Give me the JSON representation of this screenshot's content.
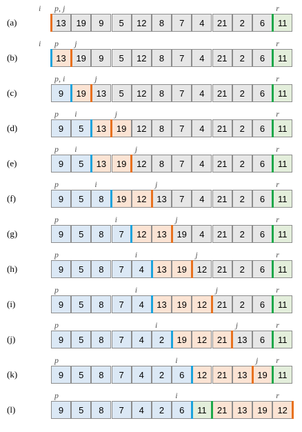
{
  "colors": {
    "blue_cell": "#dbe8f5",
    "peach_cell": "#fbe3d3",
    "grey_cell": "#e6e6e6",
    "green_cell": "#e3eedb",
    "i_marker": "#1aa3dd",
    "j_marker": "#e8711e",
    "r_marker": "#1ea84a"
  },
  "rows": [
    {
      "label": "(a)",
      "values": [
        13,
        19,
        9,
        5,
        12,
        8,
        7,
        4,
        21,
        2,
        6,
        11
      ],
      "colors": [
        "grey",
        "grey",
        "grey",
        "grey",
        "grey",
        "grey",
        "grey",
        "grey",
        "grey",
        "grey",
        "grey",
        "green"
      ],
      "markers": [
        {
          "pos": 0,
          "color": "orange"
        },
        {
          "pos": 11,
          "color": "green"
        }
      ],
      "indices": [
        {
          "text": "i",
          "pos": -1
        },
        {
          "text": "p, j",
          "pos": 0
        },
        {
          "text": "r",
          "pos": 11
        }
      ]
    },
    {
      "label": "(b)",
      "values": [
        13,
        19,
        9,
        5,
        12,
        8,
        7,
        4,
        21,
        2,
        6,
        11
      ],
      "colors": [
        "peach",
        "grey",
        "grey",
        "grey",
        "grey",
        "grey",
        "grey",
        "grey",
        "grey",
        "grey",
        "grey",
        "green"
      ],
      "markers": [
        {
          "pos": 0,
          "color": "blue"
        },
        {
          "pos": 1,
          "color": "orange"
        },
        {
          "pos": 11,
          "color": "green"
        }
      ],
      "indices": [
        {
          "text": "i",
          "pos": -1
        },
        {
          "text": "p",
          "pos": 0
        },
        {
          "text": "j",
          "pos": 1
        },
        {
          "text": "r",
          "pos": 11
        }
      ]
    },
    {
      "label": "(c)",
      "values": [
        9,
        19,
        13,
        5,
        12,
        8,
        7,
        4,
        21,
        2,
        6,
        11
      ],
      "colors": [
        "blue",
        "peach",
        "grey",
        "grey",
        "grey",
        "grey",
        "grey",
        "grey",
        "grey",
        "grey",
        "grey",
        "green"
      ],
      "markers": [
        {
          "pos": 1,
          "color": "blue"
        },
        {
          "pos": 2,
          "color": "orange"
        },
        {
          "pos": 11,
          "color": "green"
        }
      ],
      "indices": [
        {
          "text": "p, i",
          "pos": 0
        },
        {
          "text": "j",
          "pos": 2
        },
        {
          "text": "r",
          "pos": 11
        }
      ]
    },
    {
      "label": "(d)",
      "values": [
        9,
        5,
        13,
        19,
        12,
        8,
        7,
        4,
        21,
        2,
        6,
        11
      ],
      "colors": [
        "blue",
        "blue",
        "peach",
        "peach",
        "grey",
        "grey",
        "grey",
        "grey",
        "grey",
        "grey",
        "grey",
        "green"
      ],
      "markers": [
        {
          "pos": 2,
          "color": "blue"
        },
        {
          "pos": 3,
          "color": "orange"
        },
        {
          "pos": 11,
          "color": "green"
        }
      ],
      "indices": [
        {
          "text": "p",
          "pos": 0
        },
        {
          "text": "i",
          "pos": 1
        },
        {
          "text": "j",
          "pos": 3
        },
        {
          "text": "r",
          "pos": 11
        }
      ]
    },
    {
      "label": "(e)",
      "values": [
        9,
        5,
        13,
        19,
        12,
        8,
        7,
        4,
        21,
        2,
        6,
        11
      ],
      "colors": [
        "blue",
        "blue",
        "peach",
        "peach",
        "grey",
        "grey",
        "grey",
        "grey",
        "grey",
        "grey",
        "grey",
        "green"
      ],
      "markers": [
        {
          "pos": 2,
          "color": "blue"
        },
        {
          "pos": 4,
          "color": "orange"
        },
        {
          "pos": 11,
          "color": "green"
        }
      ],
      "indices": [
        {
          "text": "p",
          "pos": 0
        },
        {
          "text": "i",
          "pos": 1
        },
        {
          "text": "j",
          "pos": 4
        },
        {
          "text": "r",
          "pos": 11
        }
      ]
    },
    {
      "label": "(f)",
      "values": [
        9,
        5,
        8,
        19,
        12,
        13,
        7,
        4,
        21,
        2,
        6,
        11
      ],
      "colors": [
        "blue",
        "blue",
        "blue",
        "peach",
        "peach",
        "grey",
        "grey",
        "grey",
        "grey",
        "grey",
        "grey",
        "green"
      ],
      "markers": [
        {
          "pos": 3,
          "color": "blue"
        },
        {
          "pos": 5,
          "color": "orange"
        },
        {
          "pos": 11,
          "color": "green"
        }
      ],
      "indices": [
        {
          "text": "p",
          "pos": 0
        },
        {
          "text": "i",
          "pos": 2
        },
        {
          "text": "j",
          "pos": 5
        },
        {
          "text": "r",
          "pos": 11
        }
      ]
    },
    {
      "label": "(g)",
      "values": [
        9,
        5,
        8,
        7,
        12,
        13,
        19,
        4,
        21,
        2,
        6,
        11
      ],
      "colors": [
        "blue",
        "blue",
        "blue",
        "blue",
        "peach",
        "peach",
        "grey",
        "grey",
        "grey",
        "grey",
        "grey",
        "green"
      ],
      "markers": [
        {
          "pos": 4,
          "color": "blue"
        },
        {
          "pos": 6,
          "color": "orange"
        },
        {
          "pos": 11,
          "color": "green"
        }
      ],
      "indices": [
        {
          "text": "p",
          "pos": 0
        },
        {
          "text": "i",
          "pos": 3
        },
        {
          "text": "j",
          "pos": 6
        },
        {
          "text": "r",
          "pos": 11
        }
      ]
    },
    {
      "label": "(h)",
      "values": [
        9,
        5,
        8,
        7,
        4,
        13,
        19,
        12,
        21,
        2,
        6,
        11
      ],
      "colors": [
        "blue",
        "blue",
        "blue",
        "blue",
        "blue",
        "peach",
        "peach",
        "grey",
        "grey",
        "grey",
        "grey",
        "green"
      ],
      "markers": [
        {
          "pos": 5,
          "color": "blue"
        },
        {
          "pos": 7,
          "color": "orange"
        },
        {
          "pos": 11,
          "color": "green"
        }
      ],
      "indices": [
        {
          "text": "p",
          "pos": 0
        },
        {
          "text": "i",
          "pos": 4
        },
        {
          "text": "j",
          "pos": 7
        },
        {
          "text": "r",
          "pos": 11
        }
      ]
    },
    {
      "label": "(i)",
      "values": [
        9,
        5,
        8,
        7,
        4,
        13,
        19,
        12,
        21,
        2,
        6,
        11
      ],
      "colors": [
        "blue",
        "blue",
        "blue",
        "blue",
        "blue",
        "peach",
        "peach",
        "peach",
        "grey",
        "grey",
        "grey",
        "green"
      ],
      "markers": [
        {
          "pos": 5,
          "color": "blue"
        },
        {
          "pos": 8,
          "color": "orange"
        },
        {
          "pos": 11,
          "color": "green"
        }
      ],
      "indices": [
        {
          "text": "p",
          "pos": 0
        },
        {
          "text": "i",
          "pos": 4
        },
        {
          "text": "j",
          "pos": 8
        },
        {
          "text": "r",
          "pos": 11
        }
      ]
    },
    {
      "label": "(j)",
      "values": [
        9,
        5,
        8,
        7,
        4,
        2,
        19,
        12,
        21,
        13,
        6,
        11
      ],
      "colors": [
        "blue",
        "blue",
        "blue",
        "blue",
        "blue",
        "blue",
        "peach",
        "peach",
        "peach",
        "grey",
        "grey",
        "green"
      ],
      "markers": [
        {
          "pos": 6,
          "color": "blue"
        },
        {
          "pos": 9,
          "color": "orange"
        },
        {
          "pos": 11,
          "color": "green"
        }
      ],
      "indices": [
        {
          "text": "p",
          "pos": 0
        },
        {
          "text": "i",
          "pos": 5
        },
        {
          "text": "j",
          "pos": 9
        },
        {
          "text": "r",
          "pos": 11
        }
      ]
    },
    {
      "label": "(k)",
      "values": [
        9,
        5,
        8,
        7,
        4,
        2,
        6,
        12,
        21,
        13,
        19,
        11
      ],
      "colors": [
        "blue",
        "blue",
        "blue",
        "blue",
        "blue",
        "blue",
        "blue",
        "peach",
        "peach",
        "peach",
        "peach",
        "green"
      ],
      "markers": [
        {
          "pos": 7,
          "color": "blue"
        },
        {
          "pos": 10,
          "color": "orange"
        },
        {
          "pos": 11,
          "color": "green"
        }
      ],
      "indices": [
        {
          "text": "p",
          "pos": 0
        },
        {
          "text": "i",
          "pos": 6
        },
        {
          "text": "j",
          "pos": 10
        },
        {
          "text": "r",
          "pos": 11
        }
      ]
    },
    {
      "label": "(l)",
      "values": [
        9,
        5,
        8,
        7,
        4,
        2,
        6,
        11,
        21,
        13,
        19,
        12
      ],
      "colors": [
        "blue",
        "blue",
        "blue",
        "blue",
        "blue",
        "blue",
        "blue",
        "green",
        "peach",
        "peach",
        "peach",
        "peach"
      ],
      "markers": [
        {
          "pos": 7,
          "color": "blue"
        },
        {
          "pos": 8,
          "color": "green"
        },
        {
          "pos": 12,
          "color": "orange"
        }
      ],
      "indices": [
        {
          "text": "p",
          "pos": 0
        },
        {
          "text": "i",
          "pos": 6
        },
        {
          "text": "r",
          "pos": 11
        }
      ]
    }
  ]
}
